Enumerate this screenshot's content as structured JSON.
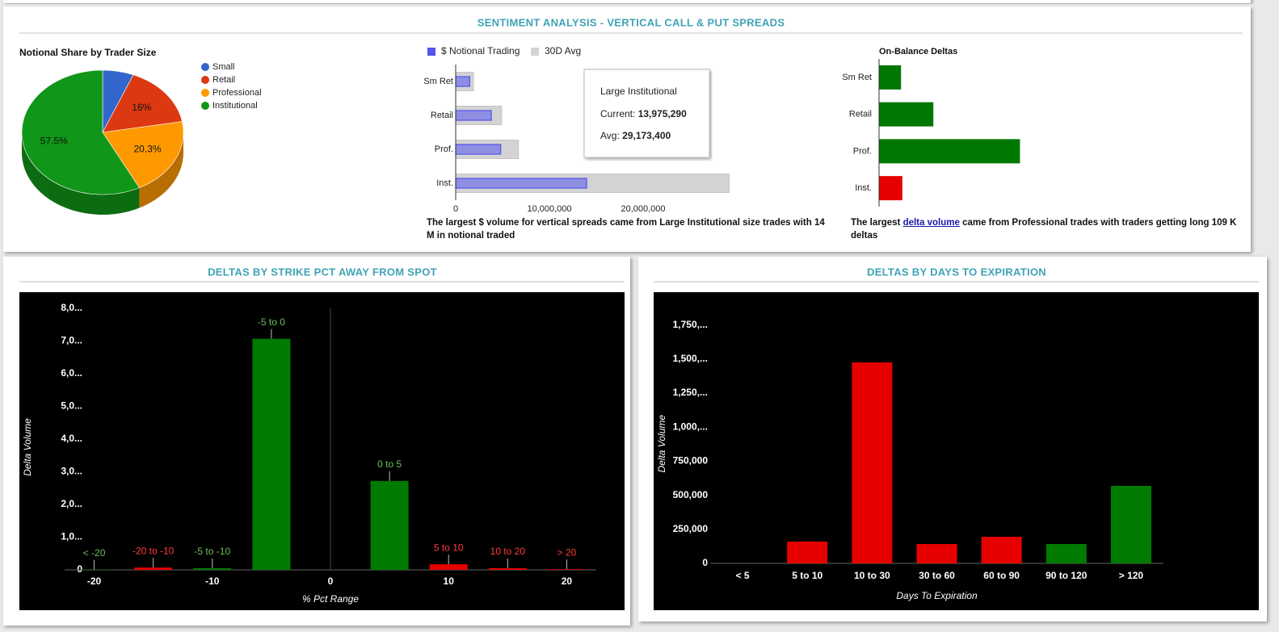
{
  "panels": [
    {
      "title": "SENTIMENT ANALYSIS - VERTICAL CALL & PUT SPREADS"
    },
    {
      "title": "DELTAS BY STRIKE PCT AWAY FROM SPOT"
    },
    {
      "title": "DELTAS BY DAYS TO EXPIRATION"
    }
  ],
  "chart_data": [
    {
      "type": "pie",
      "title": "Notional Share by Trader Size",
      "categories": [
        "Small",
        "Retail",
        "Professional",
        "Institutional"
      ],
      "values": [
        6.2,
        16,
        20.3,
        57.5
      ],
      "value_labels": [
        null,
        "16%",
        "20.3%",
        "57.5%"
      ],
      "colors": [
        "#3366cc",
        "#dc3912",
        "#ff9900",
        "#109618"
      ],
      "three_d": true,
      "legend": "right"
    },
    {
      "type": "bar",
      "orientation": "horizontal",
      "categories": [
        "Sm Ret",
        "Retail",
        "Prof.",
        "Inst."
      ],
      "series": [
        {
          "name": "$ Notional Trading",
          "color": "#5555ee",
          "values": [
            1500000,
            3800000,
            4800000,
            13975290
          ]
        },
        {
          "name": "30D Avg",
          "color": "#d3d3d3",
          "values": [
            1900000,
            4900000,
            6700000,
            29173400
          ]
        }
      ],
      "xlim": [
        0,
        30000000
      ],
      "xticks": [
        0,
        {
          "value": 10000000,
          "label": "10,000,000"
        },
        {
          "value": 20000000,
          "label": "20,000,000"
        }
      ],
      "legend": "top",
      "tooltip": {
        "title": "Large Institutional",
        "rows": [
          {
            "label": "Current: ",
            "value": "13,975,290"
          },
          {
            "label": "Avg: ",
            "value": "29,173,400"
          }
        ]
      },
      "caption": "The largest $ volume for vertical spreads came from Large Institutional size trades with 14 M in notional traded"
    },
    {
      "type": "bar",
      "orientation": "horizontal",
      "title": "On-Balance Deltas",
      "categories": [
        "Sm Ret",
        "Retail",
        "Prof.",
        "Inst."
      ],
      "values": [
        17000,
        42000,
        109000,
        18000
      ],
      "colors": [
        "#007700",
        "#007700",
        "#007700",
        "#e60000"
      ],
      "xlim": [
        0,
        120000
      ],
      "caption": {
        "before": "The largest ",
        "link": "delta volume",
        "after": " came from Professional trades with traders getting long 109 K deltas"
      }
    },
    {
      "type": "bar",
      "x": [
        -20,
        -15,
        -10,
        -5,
        5,
        10,
        15,
        20
      ],
      "values": [
        10000,
        70000,
        50000,
        7070000,
        2720000,
        170000,
        50000,
        20000
      ],
      "annotations": [
        "< -20",
        "-20 to -10",
        "-5 to -10",
        "-5 to 0",
        "0 to 5",
        "5 to 10",
        "10 to 20",
        "> 20"
      ],
      "colors": [
        "#007a00",
        "#e60000",
        "#007a00",
        "#007a00",
        "#007a00",
        "#e60000",
        "#e60000",
        "#e60000"
      ],
      "annotation_colors": [
        "#6cc05a",
        "#ff3b3b",
        "#6cc05a",
        "#6cc05a",
        "#6cc05a",
        "#ff3b3b",
        "#ff3b3b",
        "#ff3b3b"
      ],
      "xlim": [
        -22.5,
        22.5
      ],
      "xticks": [
        -20,
        -10,
        0,
        10,
        20
      ],
      "ylim": [
        0,
        8000000
      ],
      "yticks": [
        0,
        {
          "value": 1000000,
          "label": "1,0..."
        },
        {
          "value": 2000000,
          "label": "2,0..."
        },
        {
          "value": 3000000,
          "label": "3,0..."
        },
        {
          "value": 4000000,
          "label": "4,0..."
        },
        {
          "value": 5000000,
          "label": "5,0..."
        },
        {
          "value": 6000000,
          "label": "6,0..."
        },
        {
          "value": 7000000,
          "label": "7,0..."
        },
        {
          "value": 8000000,
          "label": "8,0..."
        }
      ],
      "xlabel": "% Pct Range",
      "ylabel": "Delta Volume",
      "background": "#000000"
    },
    {
      "type": "bar",
      "categories": [
        "< 5",
        "5 to 10",
        "10 to 30",
        "30 to 60",
        "60 to 90",
        "90 to 120",
        "> 120"
      ],
      "values": [
        0,
        160000,
        1475000,
        142000,
        195000,
        142000,
        569000
      ],
      "colors": [
        "#e60000",
        "#e60000",
        "#e60000",
        "#e60000",
        "#e60000",
        "#007a00",
        "#007a00"
      ],
      "ylim": [
        0,
        1875000
      ],
      "yticks": [
        0,
        {
          "value": 250000,
          "label": "250,000"
        },
        {
          "value": 500000,
          "label": "500,000"
        },
        {
          "value": 750000,
          "label": "750,000"
        },
        {
          "value": 1000000,
          "label": "1,000,..."
        },
        {
          "value": 1250000,
          "label": "1,250,..."
        },
        {
          "value": 1500000,
          "label": "1,500,..."
        },
        {
          "value": 1750000,
          "label": "1,750,..."
        }
      ],
      "xlabel": "Days To Expiration",
      "ylabel": "Delta Volume",
      "background": "#000000"
    }
  ]
}
